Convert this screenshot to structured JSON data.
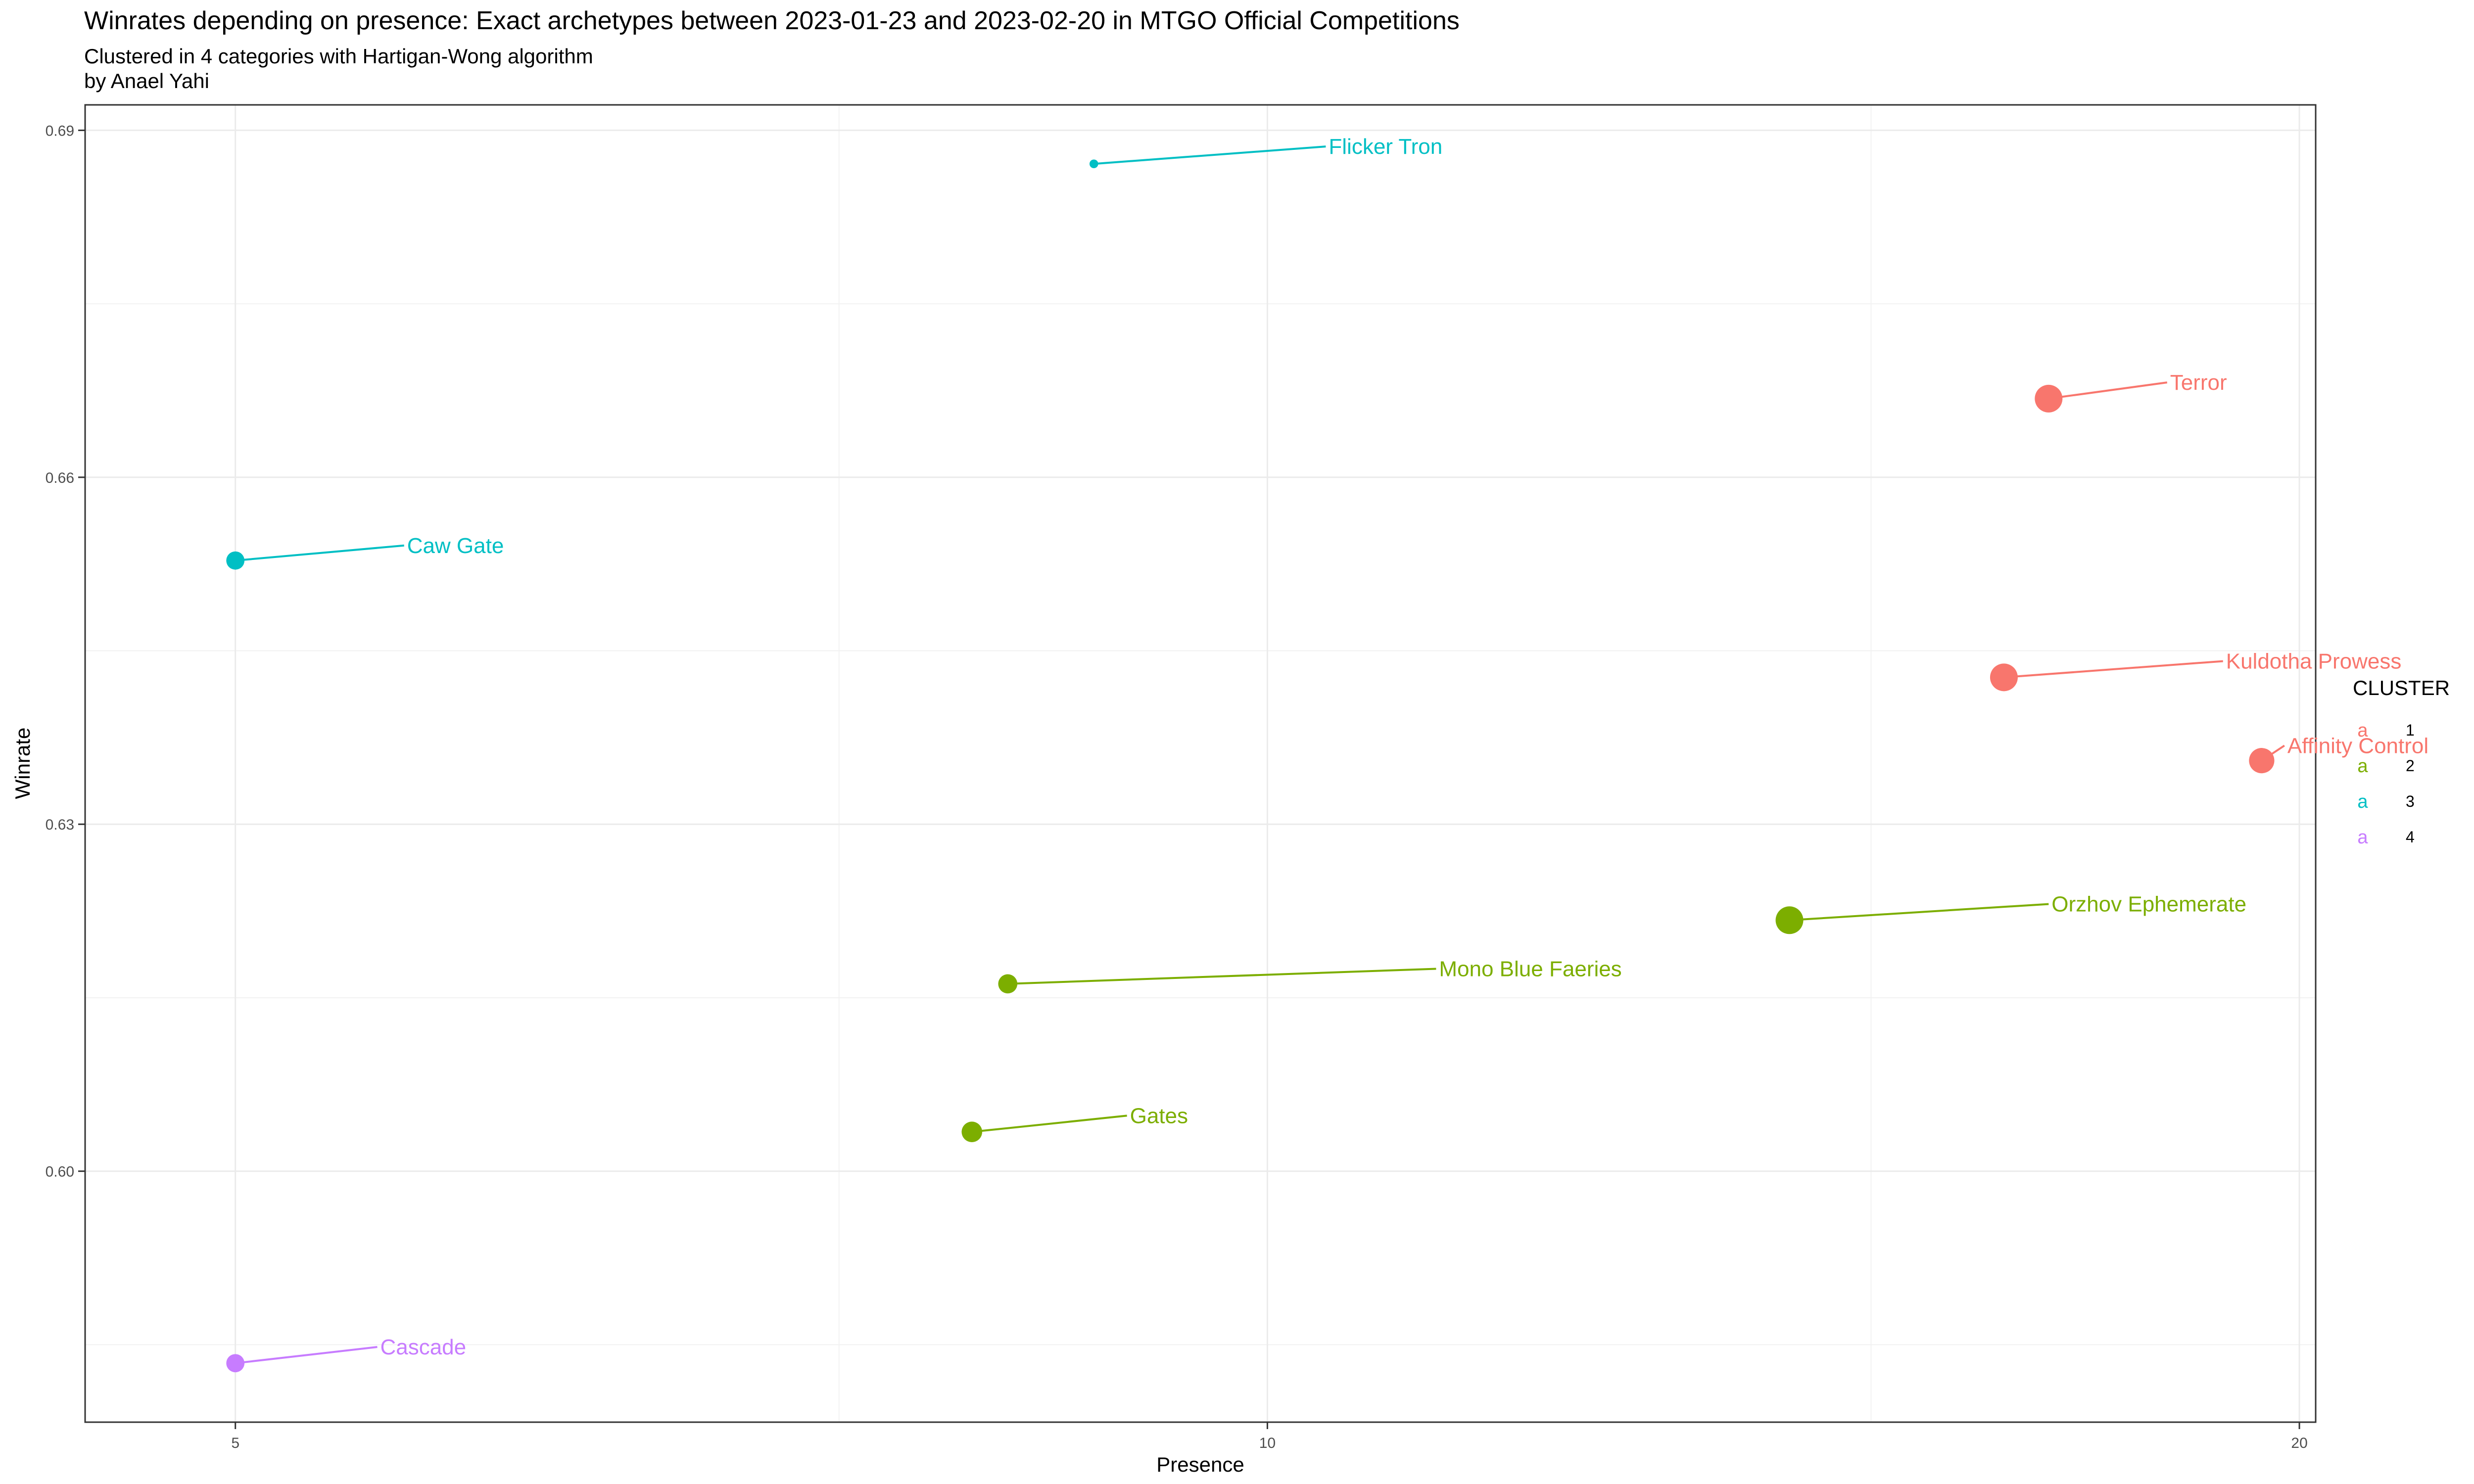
{
  "chart_data": {
    "type": "scatter",
    "title": "Winrates depending on presence: Exact archetypes  between 2023-01-23 and 2023-02-20 in MTGO Official Competitions",
    "subtitle": "Clustered in 4 categories with Hartigan-Wong algorithm",
    "caption": "by Anael Yahi",
    "xlabel": "Presence",
    "ylabel": "Winrate",
    "xlim": [
      4.52,
      20.22
    ],
    "ylim": [
      0.5783,
      0.6922
    ],
    "x_ticks": [
      5,
      10,
      20
    ],
    "x_tick_labels": [
      "5",
      "10",
      "20"
    ],
    "x_minor_ticks": [
      7.5,
      15
    ],
    "y_ticks": [
      0.6,
      0.63,
      0.66,
      0.69
    ],
    "y_tick_labels": [
      "0.60",
      "0.63",
      "0.66",
      "0.69"
    ],
    "y_minor_ticks": [
      0.585,
      0.615,
      0.645,
      0.675
    ],
    "x_scale": "log10",
    "grid": true,
    "legend": {
      "title": "CLUSTER",
      "placement": "right",
      "key_glyph": "a",
      "items": [
        {
          "label": "1",
          "color": "#F8766D"
        },
        {
          "label": "2",
          "color": "#7CAE00"
        },
        {
          "label": "3",
          "color": "#00BFC4"
        },
        {
          "label": "4",
          "color": "#C77CFF"
        }
      ]
    },
    "points": [
      {
        "label": "Flicker Tron",
        "x": 8.9,
        "y": 0.6871,
        "cluster": "3",
        "size": 1
      },
      {
        "label": "Terror",
        "x": 16.9,
        "y": 0.6668,
        "cluster": "1",
        "size": 5
      },
      {
        "label": "Caw Gate",
        "x": 5.0,
        "y": 0.6528,
        "cluster": "3",
        "size": 3
      },
      {
        "label": "Kuldotha Prowess",
        "x": 16.4,
        "y": 0.6427,
        "cluster": "1",
        "size": 5
      },
      {
        "label": "Affinity Control",
        "x": 19.5,
        "y": 0.6355,
        "cluster": "1",
        "size": 4.5
      },
      {
        "label": "Orzhov Ephemerate",
        "x": 14.2,
        "y": 0.6217,
        "cluster": "2",
        "size": 5
      },
      {
        "label": "Mono Blue Faeries",
        "x": 8.4,
        "y": 0.6162,
        "cluster": "2",
        "size": 3.2
      },
      {
        "label": "Gates",
        "x": 8.2,
        "y": 0.6034,
        "cluster": "2",
        "size": 3.5
      },
      {
        "label": "Cascade",
        "x": 5.0,
        "y": 0.5834,
        "cluster": "4",
        "size": 3
      }
    ],
    "label_positions": [
      {
        "label": "Flicker Tron",
        "x": 10.4,
        "y": 0.6886
      },
      {
        "label": "Terror",
        "x": 18.3,
        "y": 0.6682
      },
      {
        "label": "Caw Gate",
        "x": 5.6,
        "y": 0.6541
      },
      {
        "label": "Kuldotha Prowess",
        "x": 19.0,
        "y": 0.6441
      },
      {
        "label": "Affinity Control",
        "x": 19.8,
        "y": 0.6368
      },
      {
        "label": "Orzhov Ephemerate",
        "x": 16.9,
        "y": 0.6231
      },
      {
        "label": "Mono Blue Faeries",
        "x": 11.2,
        "y": 0.6175
      },
      {
        "label": "Gates",
        "x": 9.1,
        "y": 0.6048
      },
      {
        "label": "Cascade",
        "x": 5.5,
        "y": 0.5848
      }
    ]
  }
}
